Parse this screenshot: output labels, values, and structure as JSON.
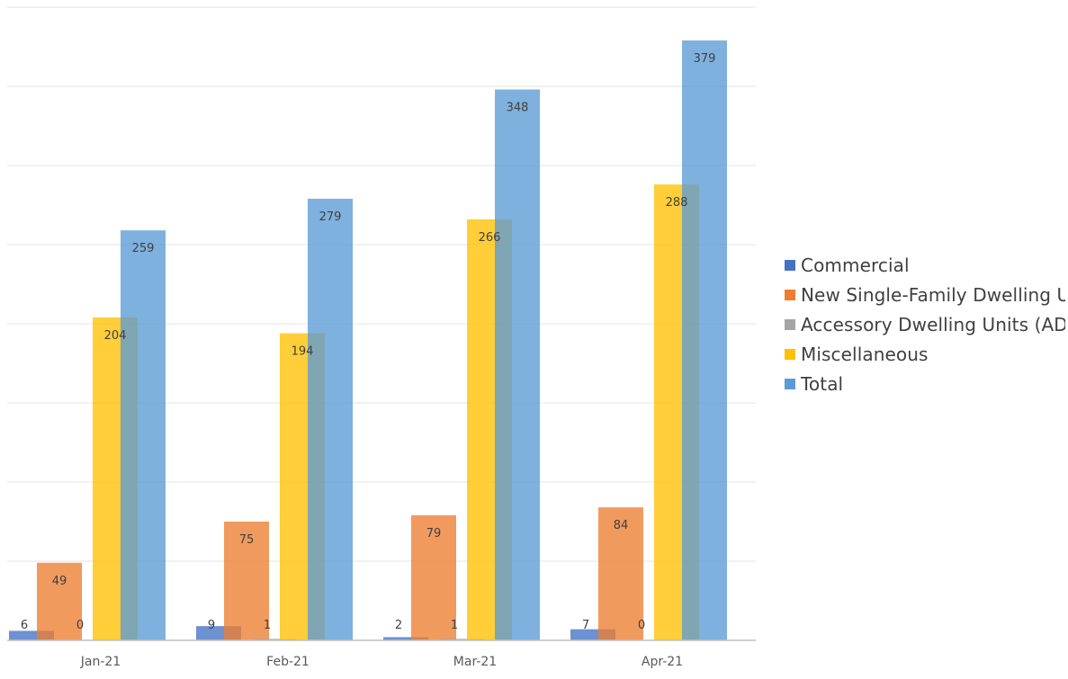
{
  "chart_data": {
    "type": "bar",
    "categories": [
      "Jan-21",
      "Feb-21",
      "Mar-21",
      "Apr-21"
    ],
    "series": [
      {
        "name": "Commercial",
        "values": [
          6,
          9,
          2,
          7
        ],
        "color": "#4472C4"
      },
      {
        "name": "New Single-Family Dwelling U",
        "values": [
          49,
          75,
          79,
          84
        ],
        "color": "#ED7D31"
      },
      {
        "name": "Accessory Dwelling Units (AD",
        "values": [
          0,
          1,
          1,
          0
        ],
        "color": "#A5A5A5"
      },
      {
        "name": "Miscellaneous",
        "values": [
          204,
          194,
          266,
          288
        ],
        "color": "#FFC000"
      },
      {
        "name": "Total",
        "values": [
          259,
          279,
          348,
          379
        ],
        "color": "#5B9BD5"
      }
    ],
    "ylim": [
      0,
      400
    ],
    "grid": true,
    "legend_position": "right",
    "title": "",
    "xlabel": "",
    "ylabel": ""
  }
}
